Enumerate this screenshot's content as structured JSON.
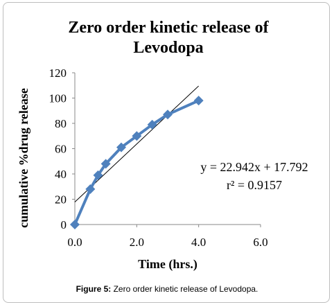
{
  "chart_data": {
    "type": "line",
    "title_lines": [
      "Zero order kinetic release of",
      "Levodopa"
    ],
    "xlabel": "Time (hrs.)",
    "ylabel": "cumulative %drug release",
    "xlim": [
      0,
      6
    ],
    "ylim": [
      0,
      120
    ],
    "x_ticks": [
      "0.0",
      "2.0",
      "4.0",
      "6.0"
    ],
    "y_ticks": [
      "0",
      "20",
      "40",
      "60",
      "80",
      "100",
      "120"
    ],
    "grid": false,
    "series": [
      {
        "x": [
          0,
          0.5,
          0.75,
          1,
          1.5,
          2,
          2.5,
          3,
          4
        ],
        "y": [
          0,
          28,
          39,
          48,
          61,
          70,
          79,
          87,
          98
        ],
        "color": "#4F81BD",
        "marker": "diamond"
      }
    ],
    "trendline": {
      "type": "linear",
      "slope": 22.942,
      "intercept": 17.792,
      "x_range": [
        0,
        4
      ],
      "color": "#000000"
    },
    "annotations": [
      "y = 22.942x + 17.792",
      "r² = 0.9157"
    ]
  },
  "caption": {
    "label": "Figure 5:",
    "text": " Zero order kinetic release of Levodopa."
  }
}
